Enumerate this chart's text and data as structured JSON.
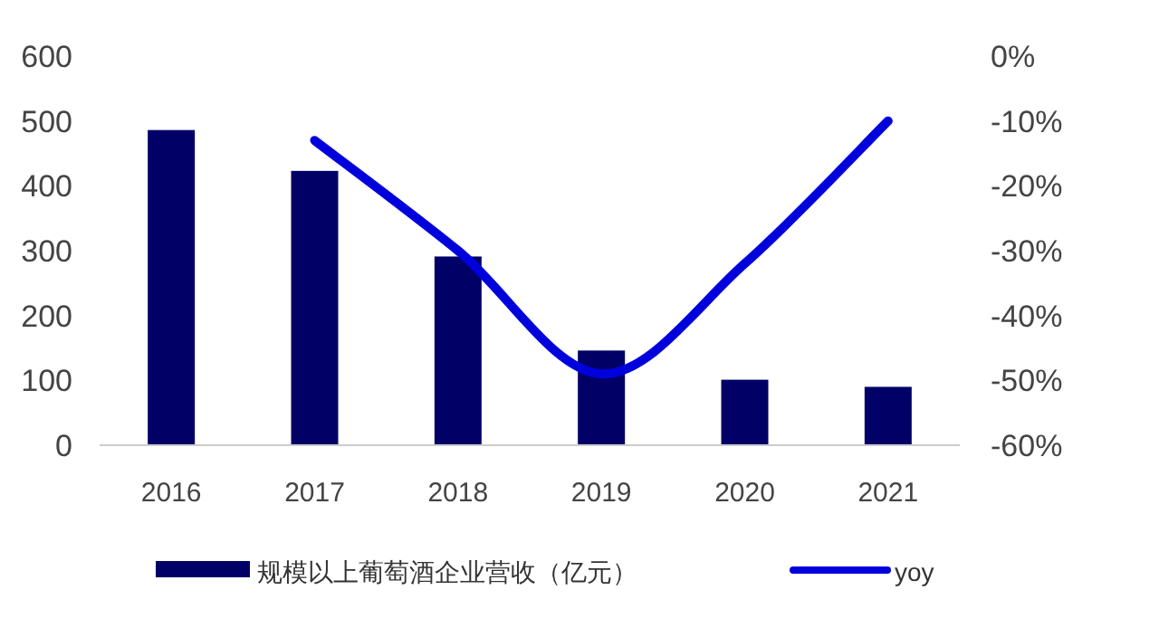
{
  "chart_data": {
    "type": "bar",
    "categories": [
      "2016",
      "2017",
      "2018",
      "2019",
      "2020",
      "2021"
    ],
    "series": [
      {
        "name": "规模以上葡萄酒企业营收（亿元）",
        "color": "#000066",
        "values": [
          486,
          423,
          291,
          146,
          101,
          90
        ]
      },
      {
        "name": "yoy",
        "type": "line",
        "axis": "y2",
        "color": "#0000dd",
        "values": [
          null,
          -13,
          -30,
          -49,
          -32,
          -10
        ]
      }
    ],
    "ylim": [
      0,
      600
    ],
    "yticks": [
      0,
      100,
      200,
      300,
      400,
      500,
      600
    ],
    "y2lim": [
      -60,
      0
    ],
    "y2ticks": [
      {
        "value": -60,
        "label": "-60%"
      },
      {
        "value": -50,
        "label": "-50%"
      },
      {
        "value": -40,
        "label": "-40%"
      },
      {
        "value": -30,
        "label": "-30%"
      },
      {
        "value": -20,
        "label": "-20%"
      },
      {
        "value": -10,
        "label": "-10%"
      },
      {
        "value": 0,
        "label": "0%"
      }
    ],
    "legend": "bottom",
    "marker": "none",
    "line_style": "solid"
  }
}
